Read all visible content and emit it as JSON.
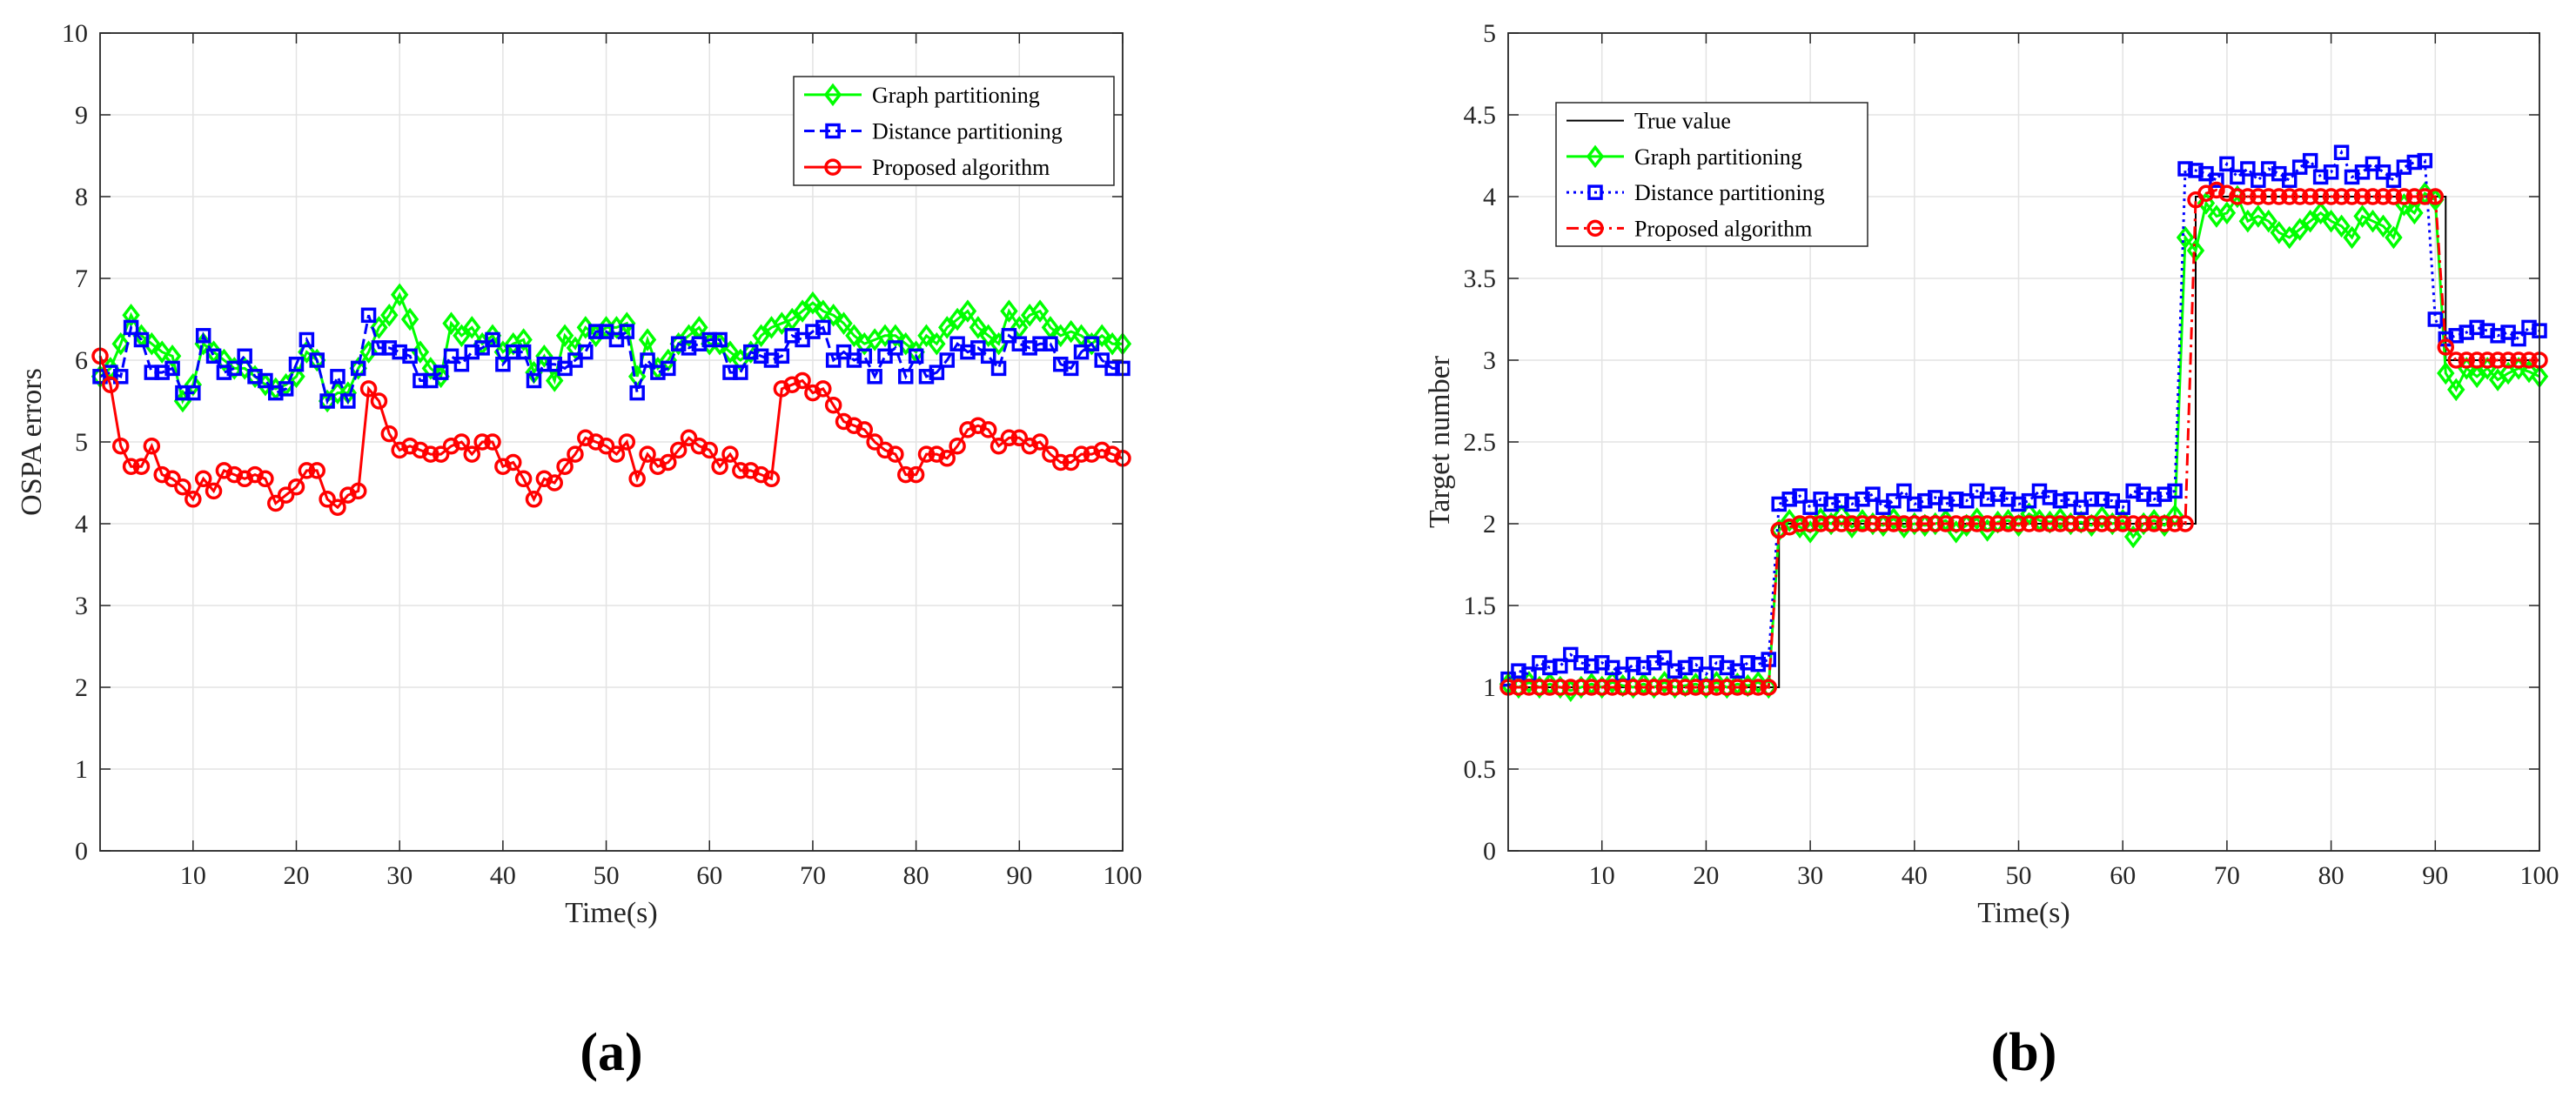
{
  "chart_data": [
    {
      "type": "line",
      "panel_label": "(a)",
      "xlabel": "Time(s)",
      "ylabel": "OSPA errors",
      "xlim": [
        1,
        100
      ],
      "ylim": [
        0,
        10
      ],
      "xticks": [
        10,
        20,
        30,
        40,
        50,
        60,
        70,
        80,
        90,
        100
      ],
      "yticks": [
        0,
        1,
        2,
        3,
        4,
        5,
        6,
        7,
        8,
        9,
        10
      ],
      "grid": true,
      "legend_position": "top-right",
      "series": [
        {
          "name": "Graph partitioning",
          "color": "#00ff00",
          "marker": "diamond",
          "linestyle": "solid",
          "values": [
            5.8,
            5.9,
            6.2,
            6.55,
            6.3,
            6.2,
            6.1,
            6.05,
            5.5,
            5.7,
            6.2,
            6.1,
            6.0,
            5.9,
            5.9,
            5.8,
            5.7,
            5.65,
            5.7,
            5.8,
            6.1,
            6.0,
            5.5,
            5.6,
            5.6,
            5.9,
            6.1,
            6.4,
            6.55,
            6.8,
            6.5,
            6.1,
            5.9,
            5.8,
            6.45,
            6.3,
            6.4,
            6.2,
            6.3,
            6.1,
            6.2,
            6.25,
            5.85,
            6.05,
            5.75,
            6.3,
            6.15,
            6.4,
            6.3,
            6.4,
            6.4,
            6.45,
            5.8,
            6.25,
            5.9,
            6.0,
            6.2,
            6.3,
            6.4,
            6.2,
            6.2,
            6.1,
            6.0,
            6.1,
            6.3,
            6.4,
            6.45,
            6.5,
            6.6,
            6.7,
            6.6,
            6.55,
            6.45,
            6.3,
            6.2,
            6.25,
            6.3,
            6.3,
            6.2,
            6.1,
            6.3,
            6.2,
            6.4,
            6.5,
            6.6,
            6.4,
            6.3,
            6.2,
            6.6,
            6.4,
            6.55,
            6.6,
            6.4,
            6.3,
            6.35,
            6.3,
            6.2,
            6.3,
            6.2,
            6.2
          ]
        },
        {
          "name": "Distance partitioning",
          "color": "#0000ff",
          "marker": "square",
          "linestyle": "dashed",
          "values": [
            5.8,
            5.85,
            5.8,
            6.4,
            6.25,
            5.85,
            5.85,
            5.9,
            5.6,
            5.6,
            6.3,
            6.05,
            5.85,
            5.9,
            6.05,
            5.8,
            5.75,
            5.6,
            5.65,
            5.95,
            6.25,
            6.0,
            5.5,
            5.8,
            5.5,
            5.9,
            6.55,
            6.15,
            6.15,
            6.1,
            6.05,
            5.75,
            5.75,
            5.85,
            6.05,
            5.95,
            6.1,
            6.15,
            6.25,
            5.95,
            6.1,
            6.1,
            5.75,
            5.95,
            5.95,
            5.9,
            6.0,
            6.1,
            6.35,
            6.35,
            6.25,
            6.35,
            5.6,
            6.0,
            5.85,
            5.9,
            6.2,
            6.15,
            6.2,
            6.25,
            6.25,
            5.85,
            5.85,
            6.1,
            6.05,
            6.0,
            6.05,
            6.3,
            6.25,
            6.35,
            6.4,
            6.0,
            6.1,
            6.0,
            6.05,
            5.8,
            6.05,
            6.15,
            5.8,
            6.05,
            5.8,
            5.85,
            6.0,
            6.2,
            6.1,
            6.15,
            6.05,
            5.9,
            6.3,
            6.2,
            6.15,
            6.2,
            6.2,
            5.95,
            5.9,
            6.1,
            6.2,
            6.0,
            5.9,
            5.9
          ]
        },
        {
          "name": "Proposed algorithm",
          "color": "#ff0000",
          "marker": "circle",
          "linestyle": "solid",
          "values": [
            6.05,
            5.7,
            4.95,
            4.7,
            4.7,
            4.95,
            4.6,
            4.55,
            4.45,
            4.3,
            4.55,
            4.4,
            4.65,
            4.6,
            4.55,
            4.6,
            4.55,
            4.25,
            4.35,
            4.45,
            4.65,
            4.65,
            4.3,
            4.2,
            4.35,
            4.4,
            5.65,
            5.5,
            5.1,
            4.9,
            4.95,
            4.9,
            4.85,
            4.85,
            4.95,
            5.0,
            4.85,
            5.0,
            5.0,
            4.7,
            4.75,
            4.55,
            4.3,
            4.55,
            4.5,
            4.7,
            4.85,
            5.05,
            5.0,
            4.95,
            4.85,
            5.0,
            4.55,
            4.85,
            4.7,
            4.75,
            4.9,
            5.05,
            4.95,
            4.9,
            4.7,
            4.85,
            4.65,
            4.65,
            4.6,
            4.55,
            5.65,
            5.7,
            5.75,
            5.6,
            5.65,
            5.45,
            5.25,
            5.2,
            5.15,
            5.0,
            4.9,
            4.85,
            4.6,
            4.6,
            4.85,
            4.85,
            4.8,
            4.95,
            5.15,
            5.2,
            5.15,
            4.95,
            5.05,
            5.05,
            4.95,
            5.0,
            4.85,
            4.75,
            4.75,
            4.85,
            4.85,
            4.9,
            4.85,
            4.8
          ]
        }
      ]
    },
    {
      "type": "line",
      "panel_label": "(b)",
      "xlabel": "Time(s)",
      "ylabel": "Target number",
      "xlim": [
        1,
        100
      ],
      "ylim": [
        0,
        5
      ],
      "xticks": [
        10,
        20,
        30,
        40,
        50,
        60,
        70,
        80,
        90,
        100
      ],
      "yticks": [
        0,
        0.5,
        1,
        1.5,
        2,
        2.5,
        3,
        3.5,
        4,
        4.5,
        5
      ],
      "ytick_labels": [
        "0",
        "0.5",
        "1",
        "1.5",
        "2",
        "2.5",
        "3",
        "3.5",
        "4",
        "4.5",
        "5"
      ],
      "grid": true,
      "legend_position": "top-left",
      "true_value_segments": [
        {
          "from": 1,
          "to": 26,
          "value": 1
        },
        {
          "from": 27,
          "to": 66,
          "value": 2
        },
        {
          "from": 67,
          "to": 90,
          "value": 4
        },
        {
          "from": 91,
          "to": 100,
          "value": 3
        }
      ],
      "series": [
        {
          "name": "True value",
          "color": "#000000",
          "marker": "none",
          "linestyle": "solid",
          "step": true
        },
        {
          "name": "Graph partitioning",
          "color": "#00ff00",
          "marker": "diamond",
          "linestyle": "solid",
          "values": [
            1.02,
            1.0,
            1.03,
            1.0,
            1.02,
            1.0,
            0.98,
            1.0,
            1.02,
            1.0,
            1.03,
            1.01,
            1.0,
            1.02,
            1.0,
            1.03,
            1.0,
            1.01,
            1.02,
            1.0,
            1.03,
            1.0,
            1.02,
            1.01,
            1.03,
            1.0,
            1.96,
            2.02,
            1.98,
            1.95,
            2.03,
            2.0,
            2.05,
            1.98,
            2.02,
            2.0,
            1.99,
            2.03,
            1.98,
            2.0,
            1.99,
            2.0,
            2.02,
            1.95,
            1.99,
            2.03,
            1.96,
            2.01,
            2.02,
            1.99,
            2.06,
            2.02,
            2.01,
            2.03,
            2.0,
            2.01,
            1.99,
            2.04,
            2.0,
            2.02,
            1.92,
            2.0,
            2.02,
            1.99,
            2.05,
            3.75,
            3.67,
            3.96,
            3.88,
            3.9,
            4.0,
            3.85,
            3.88,
            3.85,
            3.78,
            3.75,
            3.8,
            3.85,
            3.9,
            3.85,
            3.82,
            3.75,
            3.88,
            3.85,
            3.82,
            3.75,
            3.95,
            3.9,
            4.02,
            3.98,
            2.92,
            2.82,
            2.95,
            2.9,
            2.95,
            2.88,
            2.92,
            2.95,
            2.93,
            2.9
          ]
        },
        {
          "name": "Distance partitioning",
          "color": "#0000ff",
          "marker": "square",
          "linestyle": "dotted",
          "values": [
            1.05,
            1.1,
            1.08,
            1.15,
            1.12,
            1.13,
            1.2,
            1.15,
            1.13,
            1.15,
            1.12,
            1.08,
            1.14,
            1.12,
            1.15,
            1.18,
            1.1,
            1.12,
            1.14,
            1.08,
            1.15,
            1.12,
            1.1,
            1.15,
            1.14,
            1.17,
            2.12,
            2.15,
            2.17,
            2.1,
            2.15,
            2.12,
            2.14,
            2.12,
            2.15,
            2.18,
            2.1,
            2.14,
            2.2,
            2.12,
            2.14,
            2.16,
            2.12,
            2.15,
            2.14,
            2.2,
            2.15,
            2.18,
            2.15,
            2.12,
            2.14,
            2.2,
            2.16,
            2.14,
            2.15,
            2.1,
            2.15,
            2.15,
            2.14,
            2.1,
            2.2,
            2.18,
            2.15,
            2.18,
            2.2,
            4.17,
            4.16,
            4.14,
            4.1,
            4.2,
            4.12,
            4.17,
            4.1,
            4.17,
            4.14,
            4.1,
            4.18,
            4.22,
            4.12,
            4.15,
            4.27,
            4.12,
            4.15,
            4.2,
            4.15,
            4.1,
            4.18,
            4.21,
            4.22,
            3.25,
            3.13,
            3.15,
            3.17,
            3.2,
            3.18,
            3.15,
            3.17,
            3.13,
            3.2,
            3.18
          ]
        },
        {
          "name": "Proposed algorithm",
          "color": "#ff0000",
          "marker": "circle",
          "linestyle": "dashdot",
          "values": [
            1.0,
            1.0,
            1.0,
            1.0,
            1.0,
            1.0,
            1.0,
            1.0,
            1.0,
            1.0,
            1.0,
            1.0,
            1.0,
            1.0,
            1.0,
            1.0,
            1.0,
            1.0,
            1.0,
            1.0,
            1.0,
            1.0,
            1.0,
            1.0,
            1.0,
            1.0,
            1.96,
            1.98,
            2.0,
            2.0,
            2.0,
            2.0,
            2.0,
            2.0,
            2.0,
            2.0,
            2.0,
            2.0,
            2.0,
            2.0,
            2.0,
            2.0,
            2.0,
            2.0,
            2.0,
            2.0,
            2.0,
            2.0,
            2.0,
            2.0,
            2.0,
            2.0,
            2.0,
            2.0,
            2.0,
            2.0,
            2.0,
            2.0,
            2.0,
            2.0,
            2.0,
            2.0,
            2.0,
            2.0,
            2.0,
            2.0,
            3.98,
            4.02,
            4.04,
            4.02,
            4.0,
            4.0,
            4.0,
            4.0,
            4.0,
            4.0,
            4.0,
            4.0,
            4.0,
            4.0,
            4.0,
            4.0,
            4.0,
            4.0,
            4.0,
            4.0,
            4.0,
            4.0,
            4.0,
            4.0,
            3.08,
            3.0,
            3.0,
            3.0,
            3.0,
            3.0,
            3.0,
            3.0,
            3.0,
            3.0
          ]
        }
      ]
    }
  ]
}
